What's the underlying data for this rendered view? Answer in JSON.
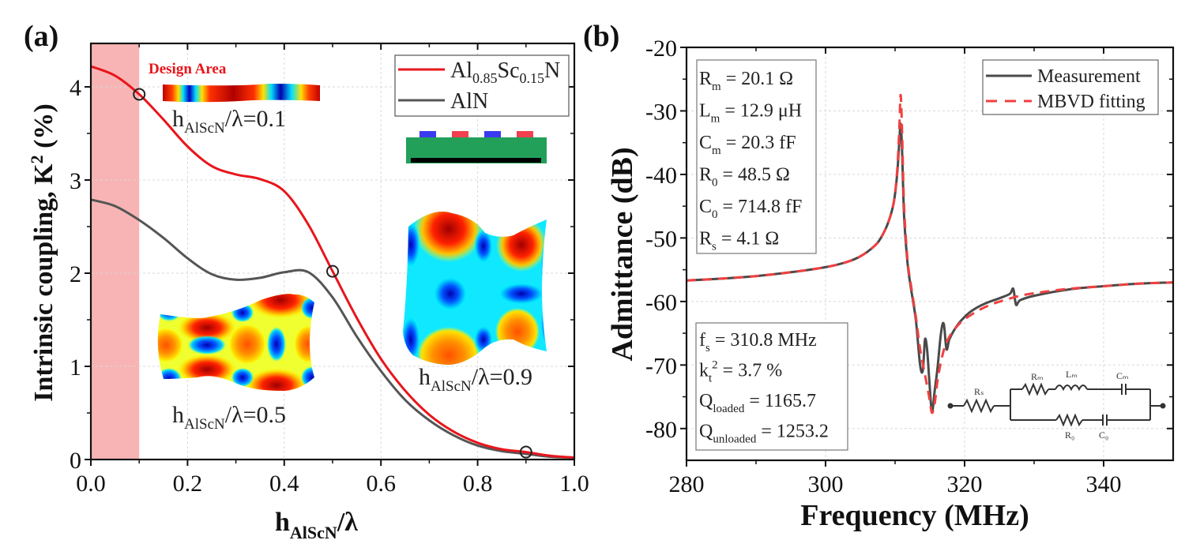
{
  "panels": [
    {
      "label": "(a)",
      "chart_data": {
        "type": "line",
        "title": "",
        "xlabel": {
          "main": "h",
          "sub": "AlScN",
          "suffix": "/λ"
        },
        "ylabel": {
          "main": "Intrinsic coupling, K",
          "sup": "2",
          "suffix": " (%)"
        },
        "xlim": [
          0.0,
          1.0
        ],
        "ylim": [
          0,
          4.4
        ],
        "xticks": [
          0.0,
          0.2,
          0.4,
          0.6,
          0.8,
          1.0
        ],
        "xtick_labels": [
          "0.0",
          "0.2",
          "0.4",
          "0.6",
          "0.8",
          "1.0"
        ],
        "yticks": [
          0,
          1,
          2,
          3,
          4
        ],
        "ytick_labels": [
          "0",
          "1",
          "2",
          "3",
          "4"
        ],
        "grid": true,
        "legend_position": "top-right",
        "shaded_region": {
          "x": [
            0.0,
            0.1
          ],
          "label": "Design Area",
          "color": "#f8b4b4",
          "label_color": "#e8151b"
        },
        "series": [
          {
            "name": "Al0.85Sc0.15N",
            "legend": {
              "base1": "Al",
              "sub1": "0.85",
              "base2": "Sc",
              "sub2": "0.15",
              "base3": "N"
            },
            "color": "#e8151b",
            "x": [
              0.0,
              0.05,
              0.1,
              0.15,
              0.2,
              0.25,
              0.3,
              0.35,
              0.4,
              0.45,
              0.5,
              0.55,
              0.6,
              0.65,
              0.7,
              0.75,
              0.8,
              0.85,
              0.9,
              0.95,
              1.0
            ],
            "y": [
              4.22,
              4.12,
              3.92,
              3.65,
              3.36,
              3.15,
              3.06,
              3.01,
              2.88,
              2.52,
              2.02,
              1.52,
              1.08,
              0.74,
              0.48,
              0.3,
              0.18,
              0.11,
              0.08,
              0.04,
              0.02
            ]
          },
          {
            "name": "AlN",
            "legend": {
              "base1": "AlN"
            },
            "color": "#555555",
            "x": [
              0.0,
              0.05,
              0.1,
              0.15,
              0.2,
              0.25,
              0.3,
              0.35,
              0.4,
              0.45,
              0.5,
              0.55,
              0.6,
              0.65,
              0.7,
              0.75,
              0.8,
              0.85,
              0.9,
              0.95,
              1.0
            ],
            "y": [
              2.79,
              2.72,
              2.57,
              2.38,
              2.16,
              1.99,
              1.93,
              1.95,
              2.01,
              2.01,
              1.74,
              1.32,
              0.95,
              0.64,
              0.42,
              0.26,
              0.15,
              0.09,
              0.06,
              0.03,
              0.02
            ]
          }
        ],
        "markers": [
          {
            "x": 0.1,
            "y": 3.92
          },
          {
            "x": 0.5,
            "y": 2.02
          },
          {
            "x": 0.9,
            "y": 0.08
          }
        ],
        "annotations": [
          {
            "main": "h",
            "sub": "AlScN",
            "suffix": "/λ=0.1"
          },
          {
            "main": "h",
            "sub": "AlScN",
            "suffix": "/λ=0.5"
          },
          {
            "main": "h",
            "sub": "AlScN",
            "suffix": "/λ=0.9"
          }
        ],
        "insets": [
          "mode-shape-0.1",
          "mode-shape-0.5",
          "mode-shape-0.9",
          "idt-cross-section"
        ],
        "inset_colors": {
          "substrate": "#22a05a",
          "electrode_a": "#3a3af0",
          "electrode_b": "#f04050",
          "bottom": "#000000"
        }
      }
    },
    {
      "label": "(b)",
      "chart_data": {
        "type": "line",
        "title": "",
        "xlabel": "Frequency (MHz)",
        "ylabel": "Admittance (dB)",
        "xlim": [
          280,
          350
        ],
        "ylim": [
          -85,
          -20
        ],
        "xticks": [
          280,
          300,
          320,
          340
        ],
        "xtick_labels": [
          "280",
          "300",
          "320",
          "340"
        ],
        "yticks": [
          -20,
          -30,
          -40,
          -50,
          -60,
          -70,
          -80
        ],
        "ytick_labels": [
          "-20",
          "-30",
          "-40",
          "-50",
          "-60",
          "-70",
          "-80"
        ],
        "grid": true,
        "legend_position": "top-right",
        "series": [
          {
            "name": "Measurement",
            "color": "#4a4a4a",
            "style": "solid",
            "x": [
              280,
              285,
              290,
              295,
              300,
              303,
              305,
              307,
              308,
              309,
              309.8,
              310.3,
              310.6,
              310.8,
              311.0,
              311.3,
              311.8,
              312.3,
              313.0,
              313.6,
              314.0,
              314.3,
              314.6,
              314.9,
              315.3,
              315.7,
              316.1,
              316.6,
              317.0,
              317.4,
              317.8,
              318.5,
              319.5,
              321,
              323,
              325,
              326.5,
              327.0,
              327.4,
              328,
              330,
              335,
              340,
              345,
              350
            ],
            "y": [
              -56.7,
              -56.4,
              -56.0,
              -55.4,
              -54.6,
              -53.8,
              -52.9,
              -51.3,
              -49.9,
              -47.6,
              -44.5,
              -40.0,
              -35.0,
              -32.0,
              -36.0,
              -46.5,
              -54.0,
              -58.0,
              -63.0,
              -70.0,
              -70.8,
              -66.0,
              -67.5,
              -72.0,
              -77.3,
              -74.0,
              -70.5,
              -65.0,
              -63.5,
              -67.5,
              -66.0,
              -64.5,
              -63.0,
              -61.5,
              -60.3,
              -59.5,
              -58.8,
              -58.0,
              -60.5,
              -59.8,
              -59.1,
              -58.1,
              -57.6,
              -57.2,
              -57.0
            ]
          },
          {
            "name": "MBVD fitting",
            "color": "#f04040",
            "style": "dashed",
            "x": [
              280,
              285,
              290,
              295,
              300,
              303,
              305,
              307,
              308,
              309,
              309.8,
              310.3,
              310.6,
              310.8,
              311.0,
              311.3,
              311.8,
              312.3,
              313.0,
              313.6,
              314.3,
              314.9,
              315.3,
              315.7,
              316.1,
              316.6,
              317.2,
              318,
              319,
              320,
              322,
              324,
              326,
              328,
              330,
              335,
              340,
              345,
              350
            ],
            "y": [
              -56.7,
              -56.4,
              -56.0,
              -55.4,
              -54.6,
              -53.8,
              -52.9,
              -51.3,
              -49.9,
              -47.6,
              -44.5,
              -39.5,
              -33.0,
              -27.5,
              -33.0,
              -45.0,
              -53.5,
              -57.5,
              -62.5,
              -67.5,
              -71.5,
              -75.0,
              -77.5,
              -76.0,
              -72.5,
              -69.5,
              -67.0,
              -65.2,
              -63.8,
              -62.8,
              -61.4,
              -60.4,
              -59.7,
              -59.1,
              -58.7,
              -58.0,
              -57.6,
              -57.2,
              -57.0
            ]
          }
        ],
        "parameter_box_1": [
          {
            "main": "R",
            "sub": "m",
            "rest": " = 20.1 Ω"
          },
          {
            "main": "L",
            "sub": "m",
            "rest": " = 12.9 μH"
          },
          {
            "main": "C",
            "sub": "m",
            "rest": " = 20.3 fF"
          },
          {
            "main": "R",
            "sub": "0",
            "rest": " = 48.5 Ω"
          },
          {
            "main": "C",
            "sub": "0",
            "rest": " = 714.8 fF"
          },
          {
            "main": "R",
            "sub": "s",
            "rest": " = 4.1 Ω"
          }
        ],
        "parameter_box_2": [
          {
            "main": "f",
            "sub": "s",
            "rest": " = 310.8 MHz"
          },
          {
            "main": "k",
            "sub": "t",
            "sup": "2",
            "rest": " = 3.7 %"
          },
          {
            "main": "Q",
            "sub": "loaded",
            "rest": " = 1165.7"
          },
          {
            "main": "Q",
            "sub": "unloaded",
            "rest": " = 1253.2"
          }
        ],
        "circuit_labels": {
          "rs": "Rₛ",
          "rm": "Rₘ",
          "lm": "Lₘ",
          "cm": "Cₘ",
          "r0": "R₀",
          "c0": "C₀"
        }
      }
    }
  ]
}
